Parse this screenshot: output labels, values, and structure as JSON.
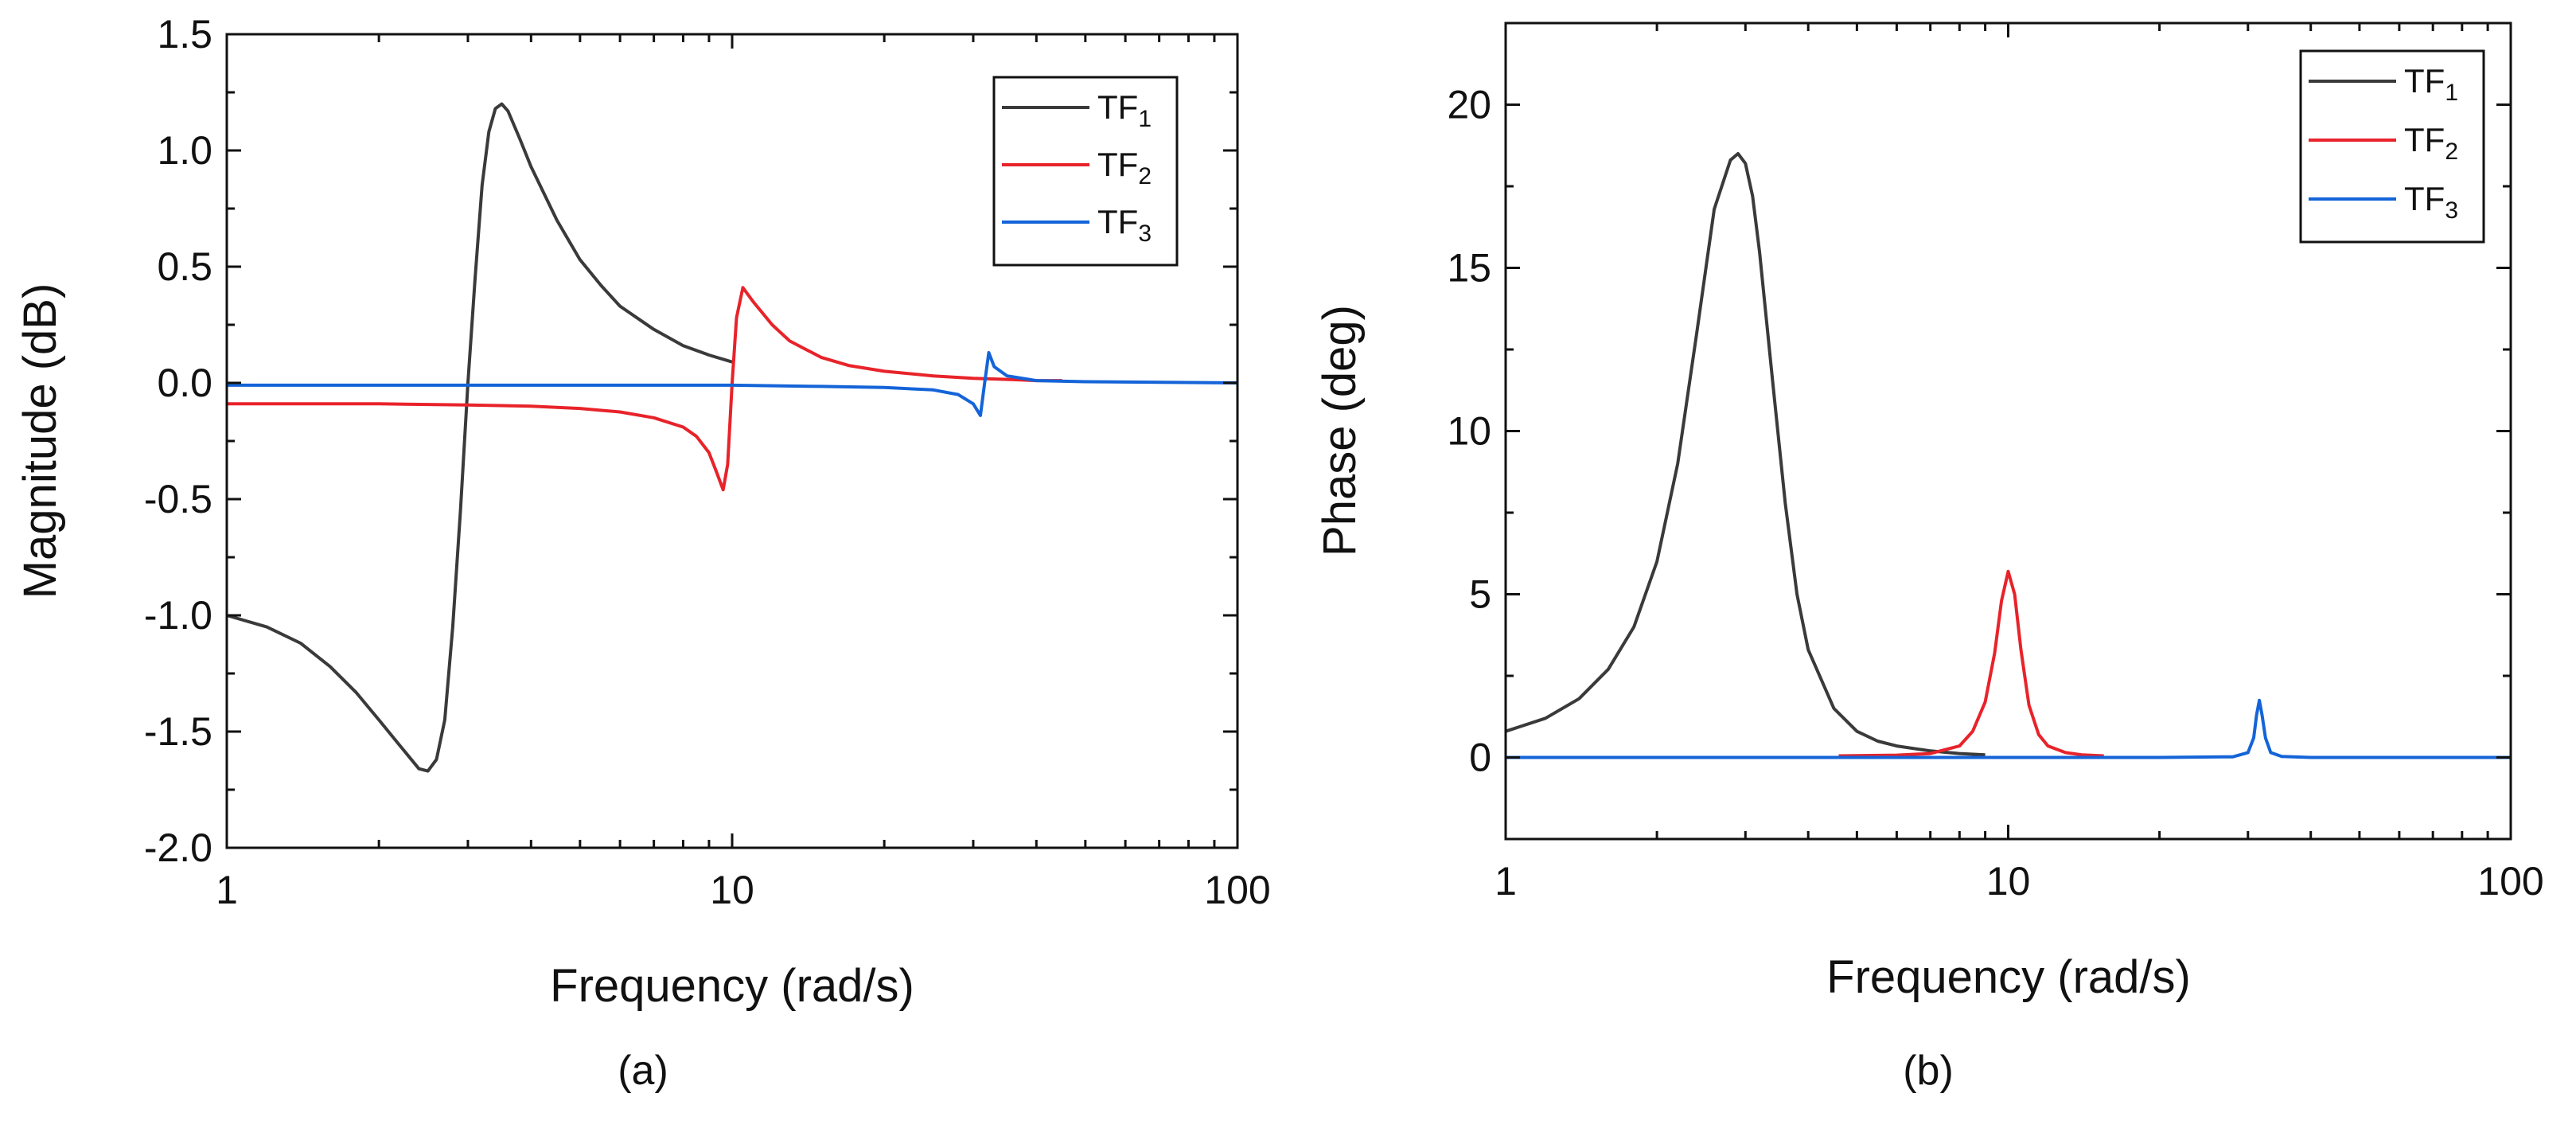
{
  "colors": {
    "tf1": "#3a3a3a",
    "tf2": "#e8232a",
    "tf3": "#1464d8",
    "axis": "#111111"
  },
  "chart_data": [
    {
      "panel_label": "(a)",
      "type": "line",
      "xscale": "log",
      "xlim": [
        1,
        100
      ],
      "ylim": [
        -2.0,
        1.5
      ],
      "xticks": [
        1,
        10,
        100
      ],
      "xtick_labels": [
        "1",
        "10",
        "100"
      ],
      "yticks": [
        -2.0,
        -1.5,
        -1.0,
        -0.5,
        0.0,
        0.5,
        1.0,
        1.5
      ],
      "ytick_labels": [
        "-2.0",
        "-1.5",
        "-1.0",
        "-0.5",
        "0.0",
        "0.5",
        "1.0",
        "1.5"
      ],
      "xlabel": "Frequency (rad/s)",
      "ylabel": "Magnitude (dB)",
      "legend_position": "top-right",
      "series": [
        {
          "name": "TF",
          "sub": "1",
          "color_key": "tf1",
          "x": [
            1.0,
            1.2,
            1.4,
            1.6,
            1.8,
            2.0,
            2.2,
            2.4,
            2.5,
            2.6,
            2.7,
            2.8,
            2.9,
            3.0,
            3.1,
            3.2,
            3.3,
            3.4,
            3.5,
            3.6,
            3.8,
            4.0,
            4.5,
            5.0,
            5.5,
            6.0,
            7.0,
            8.0,
            9.0,
            10.0
          ],
          "y": [
            -1.0,
            -1.05,
            -1.12,
            -1.22,
            -1.33,
            -1.45,
            -1.56,
            -1.66,
            -1.67,
            -1.62,
            -1.45,
            -1.05,
            -0.55,
            0.0,
            0.45,
            0.85,
            1.08,
            1.18,
            1.2,
            1.17,
            1.05,
            0.93,
            0.7,
            0.53,
            0.42,
            0.33,
            0.23,
            0.16,
            0.12,
            0.09
          ]
        },
        {
          "name": "TF",
          "sub": "2",
          "color_key": "tf2",
          "x": [
            1.0,
            2.0,
            3.0,
            4.0,
            5.0,
            6.0,
            7.0,
            8.0,
            8.5,
            9.0,
            9.3,
            9.6,
            9.8,
            10.0,
            10.2,
            10.5,
            11.0,
            12.0,
            13.0,
            15.0,
            17.0,
            20.0,
            25.0,
            30.0,
            35.0,
            40.0,
            45.0
          ],
          "y": [
            -0.09,
            -0.09,
            -0.095,
            -0.1,
            -0.11,
            -0.125,
            -0.15,
            -0.19,
            -0.23,
            -0.3,
            -0.38,
            -0.46,
            -0.35,
            0.0,
            0.28,
            0.41,
            0.35,
            0.25,
            0.18,
            0.11,
            0.075,
            0.05,
            0.03,
            0.02,
            0.015,
            0.01,
            0.01
          ]
        },
        {
          "name": "TF",
          "sub": "3",
          "color_key": "tf3",
          "x": [
            1.0,
            5.0,
            10.0,
            15.0,
            20.0,
            25.0,
            28.0,
            30.0,
            31.0,
            31.6,
            32.2,
            33.0,
            35.0,
            40.0,
            50.0,
            100.0
          ],
          "y": [
            -0.01,
            -0.01,
            -0.01,
            -0.015,
            -0.02,
            -0.03,
            -0.05,
            -0.09,
            -0.14,
            0.0,
            0.13,
            0.07,
            0.03,
            0.01,
            0.005,
            0.0
          ]
        }
      ]
    },
    {
      "panel_label": "(b)",
      "type": "line",
      "xscale": "log",
      "xlim": [
        1,
        100
      ],
      "ylim": [
        -2.5,
        22.5
      ],
      "xticks": [
        1,
        10,
        100
      ],
      "xtick_labels": [
        "1",
        "10",
        "100"
      ],
      "yticks": [
        0,
        5,
        10,
        15,
        20
      ],
      "ytick_labels": [
        "0",
        "5",
        "10",
        "15",
        "20"
      ],
      "xlabel": "Frequency (rad/s)",
      "ylabel": "Phase (deg)",
      "legend_position": "top-right",
      "series": [
        {
          "name": "TF",
          "sub": "1",
          "color_key": "tf1",
          "x": [
            1.0,
            1.2,
            1.4,
            1.6,
            1.8,
            2.0,
            2.2,
            2.4,
            2.6,
            2.8,
            2.9,
            3.0,
            3.1,
            3.2,
            3.4,
            3.6,
            3.8,
            4.0,
            4.5,
            5.0,
            5.5,
            6.0,
            7.0,
            8.0,
            9.0
          ],
          "y": [
            0.8,
            1.2,
            1.8,
            2.7,
            4.0,
            6.0,
            9.0,
            13.0,
            16.8,
            18.3,
            18.5,
            18.2,
            17.2,
            15.5,
            11.5,
            7.8,
            5.0,
            3.3,
            1.5,
            0.8,
            0.5,
            0.35,
            0.2,
            0.12,
            0.08
          ]
        },
        {
          "name": "TF",
          "sub": "2",
          "color_key": "tf2",
          "x": [
            4.6,
            6.0,
            7.0,
            8.0,
            8.5,
            9.0,
            9.4,
            9.7,
            10.0,
            10.3,
            10.6,
            11.0,
            11.5,
            12.0,
            13.0,
            14.0,
            15.5
          ],
          "y": [
            0.05,
            0.07,
            0.12,
            0.35,
            0.8,
            1.7,
            3.2,
            4.8,
            5.7,
            5.0,
            3.3,
            1.6,
            0.7,
            0.35,
            0.15,
            0.08,
            0.05
          ]
        },
        {
          "name": "TF",
          "sub": "3",
          "color_key": "tf3",
          "x": [
            1.0,
            5.0,
            10.0,
            20.0,
            28.0,
            30.0,
            30.8,
            31.2,
            31.6,
            32.0,
            32.5,
            33.3,
            35.0,
            40.0,
            100.0
          ],
          "y": [
            0.0,
            0.0,
            0.0,
            0.0,
            0.02,
            0.15,
            0.6,
            1.3,
            1.75,
            1.3,
            0.6,
            0.15,
            0.03,
            0.0,
            0.0
          ]
        }
      ]
    }
  ]
}
